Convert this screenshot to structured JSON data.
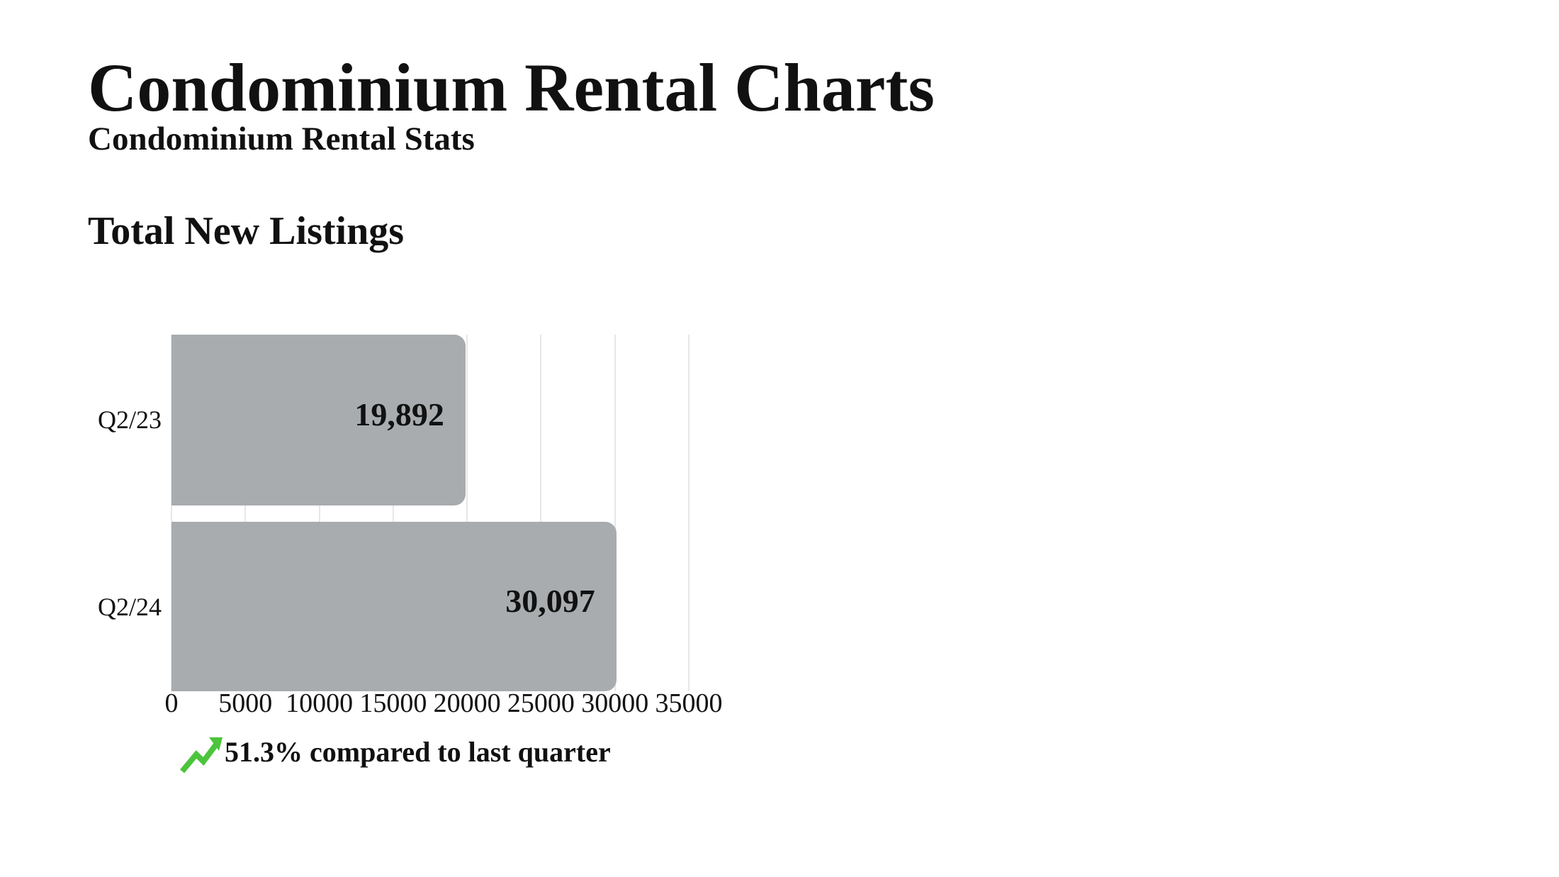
{
  "page": {
    "title": "Condominium Rental Charts",
    "subtitle": "Condominium Rental Stats",
    "section_title": "Total New Listings"
  },
  "chart_data": {
    "type": "bar",
    "orientation": "horizontal",
    "title": "Total New Listings",
    "categories": [
      "Q2/23",
      "Q2/24"
    ],
    "values": [
      19892,
      30097
    ],
    "value_labels": [
      "19,892",
      "30,097"
    ],
    "xlim": [
      0,
      35000
    ],
    "x_ticks": [
      0,
      5000,
      10000,
      15000,
      20000,
      25000,
      30000,
      35000
    ],
    "x_tick_labels": [
      "0",
      "5000",
      "10000",
      "15000",
      "20000",
      "25000",
      "30000",
      "35000"
    ],
    "grid": true,
    "legend": false,
    "bar_color": "#a8acaf",
    "gridline_color": "#e7e7e7",
    "value_label_color": "#111111"
  },
  "trend": {
    "icon": "trending-up-icon",
    "icon_color": "#4cc43c",
    "text": "51.3% compared to last quarter"
  },
  "colors": {
    "background": "#ffffff",
    "text": "#111111"
  }
}
